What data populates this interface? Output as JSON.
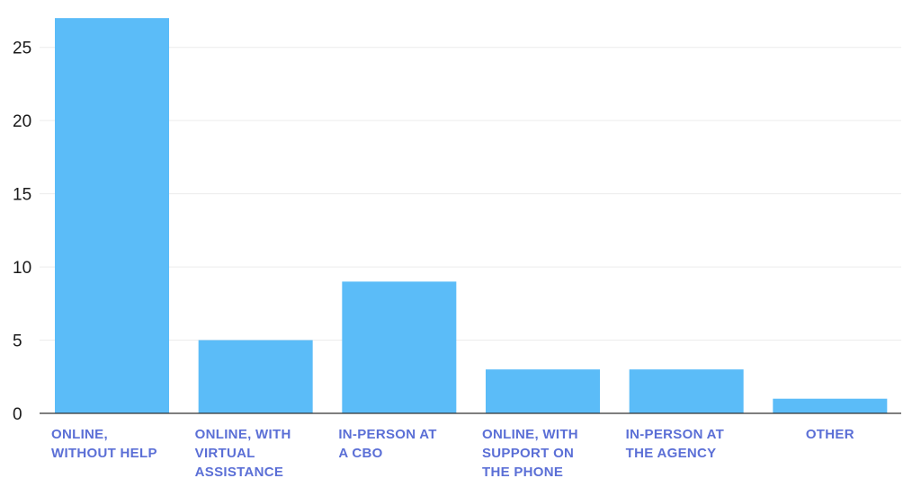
{
  "chart_data": {
    "type": "bar",
    "title": "",
    "xlabel": "",
    "ylabel": "",
    "categories": [
      [
        "ONLINE,",
        "WITHOUT HELP"
      ],
      [
        "ONLINE, WITH",
        "VIRTUAL",
        "ASSISTANCE"
      ],
      [
        "IN-PERSON AT",
        "A CBO"
      ],
      [
        "ONLINE, WITH",
        "SUPPORT ON",
        "THE PHONE"
      ],
      [
        "IN-PERSON AT",
        "THE AGENCY"
      ],
      [
        "OTHER"
      ]
    ],
    "values": [
      27,
      5,
      9,
      3,
      3,
      1
    ],
    "ylim": [
      0,
      27.5
    ],
    "yticks": [
      0,
      5,
      10,
      15,
      20,
      25
    ],
    "grid": true,
    "colors": {
      "bar": "#5bbcf8",
      "category_label": "#5b6fd6",
      "tick_label": "#1a1a1a",
      "grid": "#ececec",
      "axis": "#333333"
    }
  }
}
